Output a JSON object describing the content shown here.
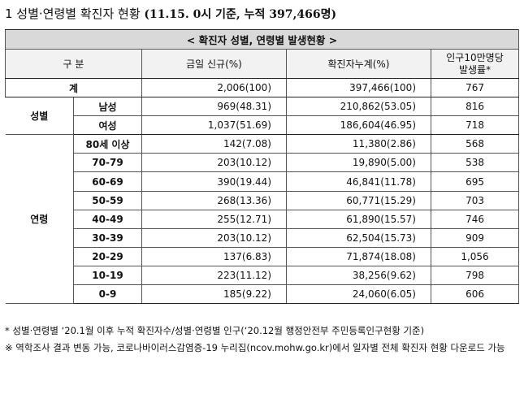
{
  "title": {
    "main": "1 성별·연령별 확진자 현황",
    "sub": "(11.15. 0시 기준, 누적 397,466명)"
  },
  "table": {
    "caption": "< 확진자 성별, 연령별 발생현황 >",
    "headers": {
      "category": "구 분",
      "new": "금일 신규(%)",
      "cumulative": "확진자누계(%)",
      "rate_line1": "인구10만명당",
      "rate_line2": "발생률*"
    },
    "total": {
      "label": "계",
      "new": "2,006(100)",
      "cumulative": "397,466(100)",
      "rate": "767"
    },
    "sex_group": "성별",
    "sex": [
      {
        "label": "남성",
        "new": "969(48.31)",
        "cumulative": "210,862(53.05)",
        "rate": "816"
      },
      {
        "label": "여성",
        "new": "1,037(51.69)",
        "cumulative": "186,604(46.95)",
        "rate": "718"
      }
    ],
    "age_group": "연령",
    "age": [
      {
        "label": "80세 이상",
        "new": "142(7.08)",
        "cumulative": "11,380(2.86)",
        "rate": "568"
      },
      {
        "label": "70-79",
        "new": "203(10.12)",
        "cumulative": "19,890(5.00)",
        "rate": "538"
      },
      {
        "label": "60-69",
        "new": "390(19.44)",
        "cumulative": "46,841(11.78)",
        "rate": "695"
      },
      {
        "label": "50-59",
        "new": "268(13.36)",
        "cumulative": "60,771(15.29)",
        "rate": "703"
      },
      {
        "label": "40-49",
        "new": "255(12.71)",
        "cumulative": "61,890(15.57)",
        "rate": "746"
      },
      {
        "label": "30-39",
        "new": "203(10.12)",
        "cumulative": "62,504(15.73)",
        "rate": "909"
      },
      {
        "label": "20-29",
        "new": "137(6.83)",
        "cumulative": "71,874(18.08)",
        "rate": "1,056"
      },
      {
        "label": "10-19",
        "new": "223(11.12)",
        "cumulative": "38,256(9.62)",
        "rate": "798"
      },
      {
        "label": "0-9",
        "new": "185(9.22)",
        "cumulative": "24,060(6.05)",
        "rate": "606"
      }
    ]
  },
  "notes": [
    "* 성별·연령별 ‘20.1월 이후 누적 확진자수/성별·연령별 인구(‘20.12월 행정안전부 주민등록인구현황 기준)",
    "※ 역학조사 결과 변동 가능, 코로나바이러스감염증-19 누리집(ncov.mohw.go.kr)에서 일자별 전체 확진자 현황 다운로드 가능"
  ]
}
